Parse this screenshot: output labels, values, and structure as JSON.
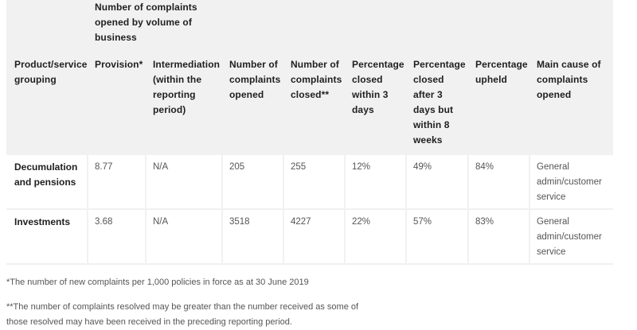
{
  "table": {
    "group_header_lines": [
      "Number of complaints",
      "opened by volume of",
      "business"
    ],
    "headers": [
      {
        "key": "product",
        "lines": [
          "Product/service",
          "grouping"
        ]
      },
      {
        "key": "provision",
        "lines": [
          "Provision*"
        ]
      },
      {
        "key": "intermediation",
        "lines": [
          "Intermediation",
          "(within the",
          "reporting",
          "period)"
        ]
      },
      {
        "key": "opened",
        "lines": [
          "Number of",
          "complaints",
          "opened"
        ]
      },
      {
        "key": "closed",
        "lines": [
          "Number of",
          "complaints",
          "closed**"
        ]
      },
      {
        "key": "pct3",
        "lines": [
          "Percentage",
          "closed",
          "within 3",
          "days"
        ]
      },
      {
        "key": "pct8",
        "lines": [
          "Percentage",
          "closed",
          "after 3",
          "days but",
          "within 8",
          "weeks"
        ]
      },
      {
        "key": "upheld",
        "lines": [
          "Percentage",
          "upheld"
        ]
      },
      {
        "key": "cause",
        "lines": [
          "Main cause of",
          "complaints",
          "opened"
        ]
      }
    ],
    "rows": [
      {
        "product": [
          "Decumulation",
          "and pensions"
        ],
        "provision": "8.77",
        "intermediation": "N/A",
        "opened": "205",
        "closed": "255",
        "pct3": "12%",
        "pct8": "49%",
        "upheld": "84%",
        "cause": [
          "General",
          "admin/customer",
          "service"
        ]
      },
      {
        "product": [
          "Investments"
        ],
        "provision": "3.68",
        "intermediation": "N/A",
        "opened": "3518",
        "closed": "4227",
        "pct3": "22%",
        "pct8": "57%",
        "upheld": "83%",
        "cause": [
          "General",
          "admin/customer",
          "service"
        ]
      }
    ]
  },
  "notes": {
    "note1": "*The number of new complaints per 1,000 policies in force as at 30 June 2019",
    "note2_line1": "**The number of complaints resolved may be greater than the number received as some of",
    "note2_line2": "those resolved may have been received in the preceding reporting period."
  }
}
